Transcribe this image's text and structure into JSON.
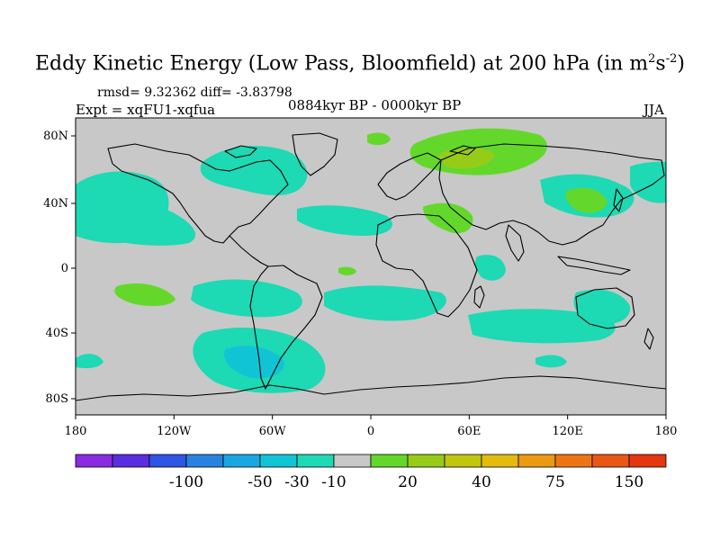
{
  "title": {
    "main": "Eddy Kinetic Energy (Low Pass, Bloomfield) at 200 hPa (in m",
    "sup1": "2",
    "mid": "s",
    "sup2": "-2",
    "close": ")"
  },
  "stats": "rmsd= 9.32362 diff= -3.83798",
  "experiment": "Expt = xqFU1-xqfua",
  "period": "0884kyr BP - 0000kyr BP",
  "season": "JJA",
  "lat_ticks": [
    "80N",
    "40N",
    "0",
    "40S",
    "80S"
  ],
  "lon_ticks": [
    "180",
    "120W",
    "60W",
    "0",
    "60E",
    "120E",
    "180"
  ],
  "colorbar": {
    "colors": [
      "#8a2be2",
      "#5a2de0",
      "#2f55e6",
      "#2a82e0",
      "#19a7e3",
      "#10c4d6",
      "#1dd9b4",
      "#c8c8c8",
      "#63d82a",
      "#96cc18",
      "#c1c60e",
      "#e3bb0c",
      "#eb9a12",
      "#ef7514",
      "#ea5714",
      "#e4360f"
    ],
    "labels": [
      "-100",
      "-50",
      "-30",
      "-10",
      "20",
      "40",
      "75",
      "150"
    ]
  },
  "colors": {
    "background": "#c8c8c8",
    "neg_light": "#1dd9b4",
    "neg_mid": "#10c4d6",
    "pos_light": "#63d82a",
    "pos_mid": "#96cc18"
  }
}
